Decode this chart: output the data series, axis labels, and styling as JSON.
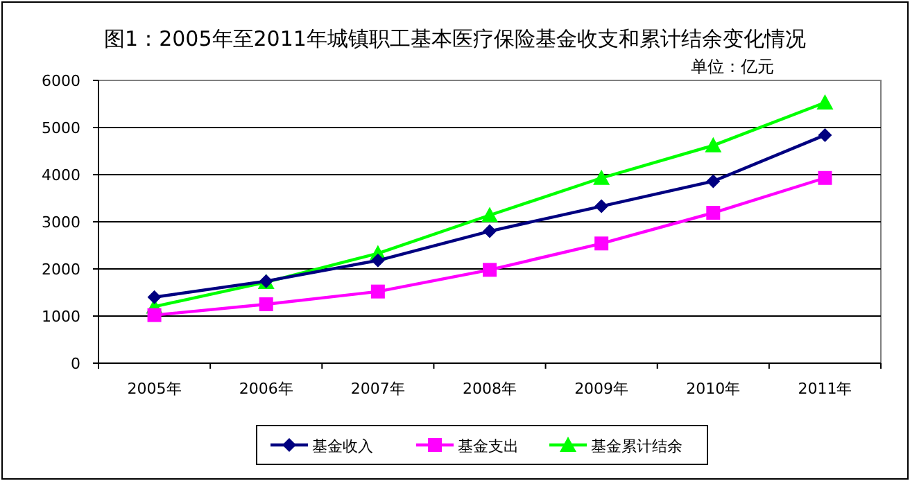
{
  "chart_data": {
    "type": "line",
    "title": "图1：2005年至2011年城镇职工基本医疗保险基金收支和累计结余变化情况",
    "annotations": [
      "单位：亿元"
    ],
    "categories": [
      "2005年",
      "2006年",
      "2007年",
      "2008年",
      "2009年",
      "2010年",
      "2011年"
    ],
    "series": [
      {
        "name": "基金收入",
        "color": "#000080",
        "marker": "diamond",
        "values": [
          1400,
          1740,
          2180,
          2800,
          3330,
          3860,
          4840
        ]
      },
      {
        "name": "基金支出",
        "color": "#ff00ff",
        "marker": "square",
        "values": [
          1020,
          1250,
          1520,
          1980,
          2540,
          3190,
          3930
        ]
      },
      {
        "name": "基金累计结余",
        "color": "#00ff00",
        "marker": "triangle",
        "values": [
          1200,
          1720,
          2330,
          3140,
          3930,
          4620,
          5530
        ]
      }
    ],
    "ylim": [
      0,
      6000
    ],
    "yticks": [
      0,
      1000,
      2000,
      3000,
      4000,
      5000,
      6000
    ],
    "grid": "y",
    "legend": "bottom",
    "line_style": "solid"
  }
}
